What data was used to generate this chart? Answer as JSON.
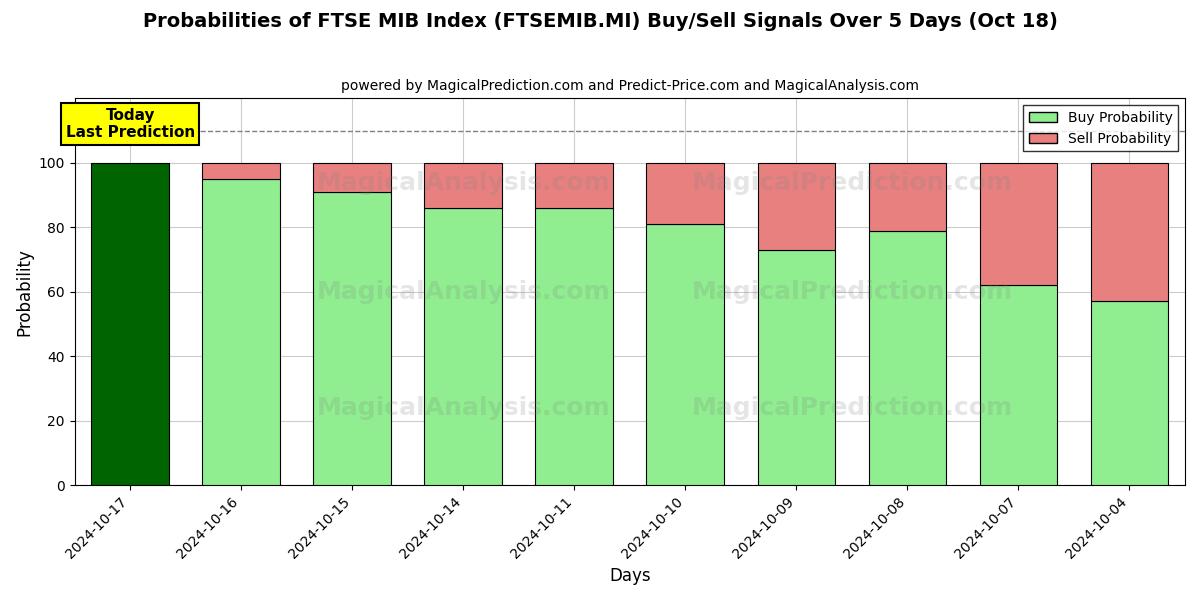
{
  "title": "Probabilities of FTSE MIB Index (FTSEMIB.MI) Buy/Sell Signals Over 5 Days (Oct 18)",
  "subtitle": "powered by MagicalPrediction.com and Predict-Price.com and MagicalAnalysis.com",
  "xlabel": "Days",
  "ylabel": "Probability",
  "dates": [
    "2024-10-17",
    "2024-10-16",
    "2024-10-15",
    "2024-10-14",
    "2024-10-11",
    "2024-10-10",
    "2024-10-09",
    "2024-10-08",
    "2024-10-07",
    "2024-10-04"
  ],
  "buy_probs": [
    100,
    95,
    91,
    86,
    86,
    81,
    73,
    79,
    62,
    57
  ],
  "sell_probs": [
    0,
    5,
    9,
    14,
    14,
    19,
    27,
    21,
    38,
    43
  ],
  "today_bar_color": "#006400",
  "buy_bar_color": "#90EE90",
  "sell_bar_color": "#E88080",
  "today_label": "Today\nLast Prediction",
  "today_label_bg": "#FFFF00",
  "legend_buy": "Buy Probability",
  "legend_sell": "Sell Probability",
  "ylim": [
    0,
    120
  ],
  "dashed_line_y": 110,
  "watermark_texts": [
    "MagicalAnalysis.com",
    "MagicalPrediction.com"
  ],
  "background_color": "#ffffff",
  "grid_color": "#cccccc"
}
